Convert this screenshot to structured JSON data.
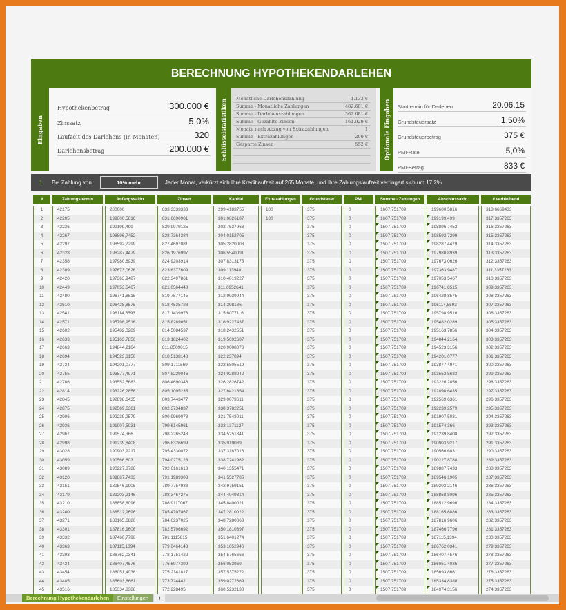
{
  "title": "BERECHNUNG HYPOTHEKENDARLEHEN",
  "inputs": {
    "label": "Eingaben",
    "fields": [
      {
        "label": "Hypothekenbetrag",
        "value": "300.000 €"
      },
      {
        "label": "Zinssatz",
        "value": "5,0%"
      },
      {
        "label": "Laufzeit des Darlehens (in Monaten)",
        "value": "320"
      },
      {
        "label": "Darlehensbetrag",
        "value": "200.000 €"
      }
    ]
  },
  "stats": {
    "label": "Schlüsselstatistiken",
    "rows": [
      {
        "label": "Monatliche Darlehenszahlung",
        "value": "1.133 €"
      },
      {
        "label": "Summe - Monatliche Zahlungen",
        "value": "482.681 €"
      },
      {
        "label": "Summe - Darlehenszahlungen",
        "value": "362.681 €"
      },
      {
        "label": "Summe - Gezahlte Zinsen",
        "value": "161.929 €"
      },
      {
        "label": "Monate nach Abzug von Extrazahlungen",
        "value": "1"
      },
      {
        "label": "Summe - Extrazahlungen",
        "value": "200 €"
      },
      {
        "label": "Gesparte Zinsen",
        "value": "552 €"
      }
    ]
  },
  "optional": {
    "label": "Optionale Eingaben",
    "fields": [
      {
        "label": "Starttermin für Darlehen",
        "value": "20.06.15"
      },
      {
        "label": "Grundsteuersatz",
        "value": "1,50%"
      },
      {
        "label": "Grundsteuerbetrag",
        "value": "375 €"
      },
      {
        "label": "PMI-Rate",
        "value": "5,0%"
      },
      {
        "label": "PMI-Betrag",
        "value": "833 €"
      }
    ]
  },
  "banner": {
    "number": "1",
    "prefix": "Bei Zahlung von",
    "selection": "10% mehr",
    "message": "Jeder Monat, verkürzt sich Ihre Kreditlaufzeit auf 265 Monate, und Ihre Zahlungslaufzeit verringert sich um 17,2%"
  },
  "colors": {
    "accent": "#4e7a12",
    "frame": "#e87a1e",
    "banner": "#4a4a4a"
  },
  "table": {
    "headers": [
      "#",
      "Zahlungstermin",
      "Anfangssaldo",
      "Zinsen",
      "Kapital",
      "Extrazahlungen",
      "Grundsteuer",
      "PMI",
      "Summe - Zahlungen",
      "Abschlussaldo",
      "# verbleibend"
    ],
    "rows": [
      [
        "1",
        "42175",
        "200000",
        "833,3333333",
        "299,4183755",
        "100",
        "375",
        "0",
        "1607,751709",
        "199600,5816",
        "318,6669433"
      ],
      [
        "2",
        "42205",
        "199600,5816",
        "831,6690901",
        "301,0826187",
        "100",
        "375",
        "0",
        "1607,751709",
        "199199,499",
        "317,3357263"
      ],
      [
        "3",
        "42236",
        "199199,499",
        "829,9979125",
        "302,7537963",
        "",
        "375",
        "0",
        "1507,751709",
        "198896,7452",
        "316,3357263"
      ],
      [
        "4",
        "42267",
        "198896,7452",
        "828,7364384",
        "304,0152705",
        "",
        "375",
        "0",
        "1507,751709",
        "198592,7299",
        "315,3357263"
      ],
      [
        "5",
        "42297",
        "198592,7299",
        "827,4697081",
        "305,2820008",
        "",
        "375",
        "0",
        "1507,751709",
        "198287,4479",
        "314,3357263"
      ],
      [
        "6",
        "42328",
        "198287,4479",
        "826,1976997",
        "306,5540091",
        "",
        "375",
        "0",
        "1507,751709",
        "197980,8939",
        "313,3357263"
      ],
      [
        "7",
        "42358",
        "197980,8939",
        "824,9203914",
        "307,8313175",
        "",
        "375",
        "0",
        "1507,751709",
        "197673,0626",
        "312,3357263"
      ],
      [
        "8",
        "42389",
        "197673,0626",
        "823,6377609",
        "309,113948",
        "",
        "375",
        "0",
        "1507,751709",
        "197363,9487",
        "311,3357263"
      ],
      [
        "9",
        "42420",
        "197363,9487",
        "822,3497861",
        "310,4019227",
        "",
        "375",
        "0",
        "1507,751709",
        "197053,5467",
        "310,3357263"
      ],
      [
        "10",
        "42449",
        "197053,5467",
        "821,0564448",
        "311,6952641",
        "",
        "375",
        "0",
        "1507,751709",
        "196741,8515",
        "309,3357263"
      ],
      [
        "11",
        "42480",
        "196741,8515",
        "819,7577145",
        "312,9939944",
        "",
        "375",
        "0",
        "1507,751709",
        "196428,8575",
        "308,3357263"
      ],
      [
        "12",
        "42510",
        "196428,8575",
        "818,4535728",
        "314,298136",
        "",
        "375",
        "0",
        "1507,751709",
        "196114,5593",
        "307,3357263"
      ],
      [
        "13",
        "42541",
        "196114,5593",
        "817,1439973",
        "315,6077116",
        "",
        "375",
        "0",
        "1507,751709",
        "195798,9516",
        "306,3357263"
      ],
      [
        "14",
        "42571",
        "195798,9516",
        "815,8289651",
        "316,9227437",
        "",
        "375",
        "0",
        "1507,751709",
        "195482,0289",
        "305,3357263"
      ],
      [
        "15",
        "42602",
        "195482,0289",
        "814,5084537",
        "318,2432551",
        "",
        "375",
        "0",
        "1507,751709",
        "195163,7856",
        "304,3357263"
      ],
      [
        "16",
        "42633",
        "195163,7856",
        "813,1824402",
        "319,5692687",
        "",
        "375",
        "0",
        "1507,751709",
        "194844,2164",
        "303,3357263"
      ],
      [
        "17",
        "42663",
        "194844,2164",
        "811,8509015",
        "320,9008073",
        "",
        "375",
        "0",
        "1507,751709",
        "194523,3156",
        "302,3357263"
      ],
      [
        "18",
        "42694",
        "194523,3156",
        "810,5138148",
        "322,237894",
        "",
        "375",
        "0",
        "1507,751709",
        "194201,0777",
        "301,3357263"
      ],
      [
        "19",
        "42724",
        "194201,0777",
        "809,1711569",
        "323,5805519",
        "",
        "375",
        "0",
        "1507,751709",
        "193877,4971",
        "300,3357263"
      ],
      [
        "20",
        "42755",
        "193877,4971",
        "807,8229046",
        "324,9288042",
        "",
        "375",
        "0",
        "1507,751709",
        "193552,5683",
        "299,3357263"
      ],
      [
        "21",
        "42786",
        "193552,5683",
        "806,4690346",
        "326,2826742",
        "",
        "375",
        "0",
        "1507,751709",
        "193226,2856",
        "298,3357263"
      ],
      [
        "22",
        "42814",
        "193226,2856",
        "805,1095235",
        "327,6421854",
        "",
        "375",
        "0",
        "1507,751709",
        "192898,6435",
        "297,3357263"
      ],
      [
        "23",
        "42845",
        "192898,6435",
        "803,7443477",
        "329,0073611",
        "",
        "375",
        "0",
        "1507,751709",
        "192569,6361",
        "296,3357263"
      ],
      [
        "24",
        "42875",
        "192569,6361",
        "802,3734837",
        "330,3782251",
        "",
        "375",
        "0",
        "1507,751709",
        "192239,2579",
        "295,3357263"
      ],
      [
        "25",
        "42906",
        "192239,2579",
        "800,9969078",
        "331,7548011",
        "",
        "375",
        "0",
        "1507,751709",
        "191907,5031",
        "294,3357263"
      ],
      [
        "26",
        "42936",
        "191907,5031",
        "799,6145961",
        "333,1371127",
        "",
        "375",
        "0",
        "1507,751709",
        "191574,366",
        "293,3357263"
      ],
      [
        "27",
        "42967",
        "191574,366",
        "798,2265248",
        "334,5251841",
        "",
        "375",
        "0",
        "1507,751709",
        "191239,8408",
        "292,3357263"
      ],
      [
        "28",
        "42998",
        "191239,8408",
        "796,8326699",
        "335,919039",
        "",
        "375",
        "0",
        "1507,751709",
        "190903,9217",
        "291,3357263"
      ],
      [
        "29",
        "43028",
        "190903,9217",
        "795,4330072",
        "337,3187016",
        "",
        "375",
        "0",
        "1507,751709",
        "190566,603",
        "290,3357263"
      ],
      [
        "30",
        "43059",
        "190566,603",
        "794,0275126",
        "338,7241962",
        "",
        "375",
        "0",
        "1507,751709",
        "190227,8788",
        "289,3357263"
      ],
      [
        "31",
        "43089",
        "190227,8788",
        "792,6161618",
        "340,1355471",
        "",
        "375",
        "0",
        "1507,751709",
        "189887,7433",
        "288,3357263"
      ],
      [
        "32",
        "43120",
        "189887,7433",
        "791,1989303",
        "341,5527785",
        "",
        "375",
        "0",
        "1507,751709",
        "189546,1905",
        "287,3357263"
      ],
      [
        "33",
        "43151",
        "189546,1905",
        "789,7757938",
        "342,9759151",
        "",
        "375",
        "0",
        "1507,751709",
        "189203,2146",
        "286,3357263"
      ],
      [
        "34",
        "43179",
        "189203,2146",
        "788,3467275",
        "344,4049814",
        "",
        "375",
        "0",
        "1507,751709",
        "188858,8096",
        "285,3357263"
      ],
      [
        "35",
        "43210",
        "188858,8096",
        "786,9117067",
        "345,8400021",
        "",
        "375",
        "0",
        "1507,751709",
        "188512,9696",
        "284,3357263"
      ],
      [
        "36",
        "43240",
        "188512,9696",
        "785,4707067",
        "347,2810022",
        "",
        "375",
        "0",
        "1507,751709",
        "188165,6886",
        "283,3357263"
      ],
      [
        "37",
        "43271",
        "188165,6886",
        "784,0237025",
        "348,7280063",
        "",
        "375",
        "0",
        "1507,751709",
        "187816,9606",
        "282,3357263"
      ],
      [
        "38",
        "43301",
        "187816,9606",
        "782,5706692",
        "350,1810397",
        "",
        "375",
        "0",
        "1507,751709",
        "187466,7796",
        "281,3357263"
      ],
      [
        "39",
        "43332",
        "187466,7796",
        "781,1115815",
        "351,6401274",
        "",
        "375",
        "0",
        "1507,751709",
        "187115,1394",
        "280,3357263"
      ],
      [
        "40",
        "43363",
        "187115,1394",
        "779,6464143",
        "353,1052946",
        "",
        "375",
        "0",
        "1507,751709",
        "186762,0341",
        "279,3357263"
      ],
      [
        "41",
        "43393",
        "186762,0341",
        "778,1751422",
        "354,5765666",
        "",
        "375",
        "0",
        "1507,751709",
        "186407,4576",
        "278,3357263"
      ],
      [
        "42",
        "43424",
        "186407,4576",
        "776,6977399",
        "356,053969",
        "",
        "375",
        "0",
        "1507,751709",
        "186051,4036",
        "277,3357263"
      ],
      [
        "43",
        "43454",
        "186051,4036",
        "775,2141817",
        "357,5375272",
        "",
        "375",
        "0",
        "1507,751709",
        "185693,8661",
        "276,3357263"
      ],
      [
        "44",
        "43485",
        "185693,8661",
        "773,724442",
        "359,0272669",
        "",
        "375",
        "0",
        "1507,751709",
        "185334,8388",
        "275,3357263"
      ],
      [
        "45",
        "43516",
        "185334,8388",
        "772,228495",
        "360,5232138",
        "",
        "375",
        "0",
        "1507,751709",
        "184974,3156",
        "274,3357263"
      ]
    ]
  },
  "tabs": {
    "active": "Berechnung Hypothekendarlehen",
    "other": "Einstellungen",
    "add": "+"
  }
}
